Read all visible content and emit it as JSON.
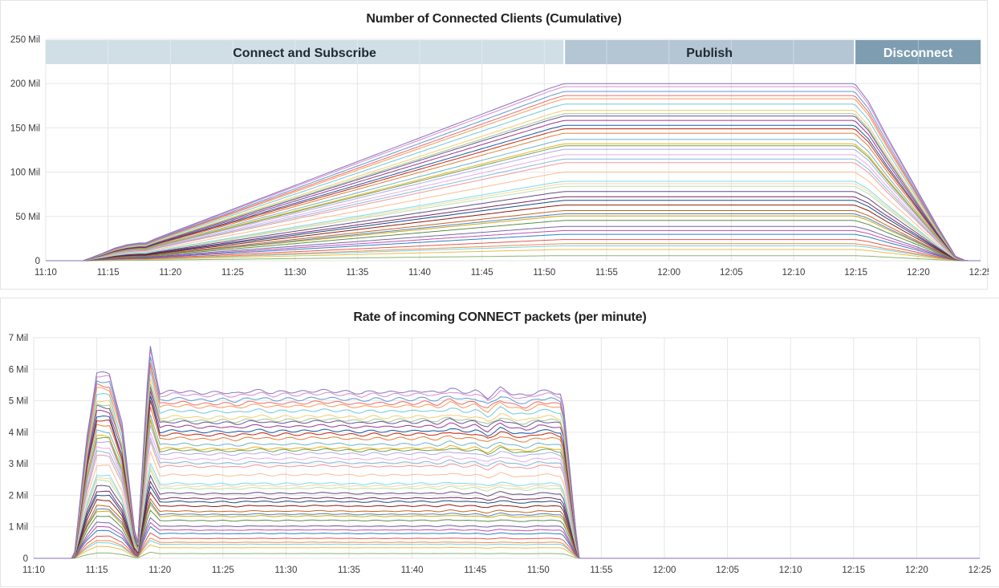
{
  "chart_data": [
    {
      "type": "area",
      "title": "Number of Connected Clients (Cumulative)",
      "x_ticks": [
        "11:10",
        "11:15",
        "11:20",
        "11:25",
        "11:30",
        "11:35",
        "11:40",
        "11:45",
        "11:50",
        "11:55",
        "12:00",
        "12:05",
        "12:10",
        "12:15",
        "12:20",
        "12:25"
      ],
      "y_ticks": [
        "0",
        "50 Mil",
        "100 Mil",
        "150 Mil",
        "200 Mil",
        "250 Mil"
      ],
      "x_range_minutes": [
        0,
        75
      ],
      "ylim": [
        0,
        250
      ],
      "y_unit": "Mil",
      "stacked": true,
      "series_count": 40,
      "grid": true,
      "phases": [
        {
          "label": "Connect and Subscribe",
          "start": 0,
          "end": 41.6,
          "color": "#d0dfe6"
        },
        {
          "label": "Publish",
          "start": 41.6,
          "end": 64.9,
          "color": "#b4c6d4"
        },
        {
          "label": "Disconnect",
          "start": 64.9,
          "end": 75,
          "color": "#7e9db1"
        }
      ],
      "total_profile": {
        "x": [
          0,
          3.0,
          4.5,
          5.5,
          6.5,
          7.5,
          8.0,
          9.0,
          40.5,
          41.6,
          64.9,
          66.0,
          67.5,
          69.5,
          71.5,
          73.0,
          73.8,
          75
        ],
        "y": [
          0,
          0,
          8,
          14,
          18,
          20,
          20,
          26,
          195,
          200,
          200,
          180,
          140,
          90,
          40,
          5,
          0,
          0
        ]
      }
    },
    {
      "type": "area",
      "title": "Rate of incoming CONNECT packets (per minute)",
      "x_ticks": [
        "11:10",
        "11:15",
        "11:20",
        "11:25",
        "11:30",
        "11:35",
        "11:40",
        "11:45",
        "11:50",
        "11:55",
        "12:00",
        "12:05",
        "12:10",
        "12:15",
        "12:20",
        "12:25"
      ],
      "y_ticks": [
        "0",
        "1 Mil",
        "2 Mil",
        "3 Mil",
        "4 Mil",
        "5 Mil",
        "6 Mil",
        "7 Mil"
      ],
      "x_range_minutes": [
        0,
        75
      ],
      "ylim": [
        0,
        7
      ],
      "y_unit": "Mil",
      "stacked": true,
      "series_count": 40,
      "grid": true,
      "total_profile": {
        "x": [
          0,
          3.2,
          4.2,
          5.0,
          6.0,
          7.0,
          8.2,
          9.2,
          10.0,
          11,
          12,
          13,
          14,
          15,
          16,
          17,
          18,
          19,
          20,
          21,
          22,
          23,
          24,
          25,
          26,
          27,
          28,
          29,
          30,
          31,
          32,
          33,
          34,
          35,
          36,
          37,
          38,
          39,
          40,
          41,
          41.9,
          43.2,
          75
        ],
        "y": [
          0,
          0,
          3.8,
          5.9,
          5.85,
          4.3,
          0.2,
          6.8,
          5.25,
          5.3,
          5.3,
          5.25,
          5.25,
          5.28,
          5.22,
          5.3,
          5.32,
          5.25,
          5.3,
          5.27,
          5.31,
          5.32,
          5.3,
          5.28,
          5.24,
          5.3,
          5.25,
          5.3,
          5.27,
          5.32,
          5.24,
          5.4,
          5.26,
          5.32,
          5.1,
          5.4,
          5.22,
          5.15,
          5.3,
          5.3,
          5.2,
          0,
          0
        ]
      }
    }
  ],
  "palette": [
    "#7eb26d",
    "#eab839",
    "#6ed0e0",
    "#ef843c",
    "#e24d42",
    "#1f78c1",
    "#ba43a9",
    "#705da0",
    "#508642",
    "#cca300",
    "#447ebc",
    "#c15c17",
    "#890f02",
    "#0a437c",
    "#6d1f62",
    "#584477",
    "#b7dbab",
    "#f4d598",
    "#70dbed",
    "#f9ba8f",
    "#f29191",
    "#82b5d8",
    "#e5a8e2",
    "#aea2e0",
    "#629e51",
    "#e5ac0e",
    "#64b0c8",
    "#e0752d",
    "#bf1b00",
    "#0a50a1",
    "#962d82",
    "#614d93",
    "#9ac48a",
    "#f2c96d",
    "#65c5db",
    "#f9934e",
    "#ea6460",
    "#5195ce",
    "#d683ce",
    "#806eb7"
  ]
}
